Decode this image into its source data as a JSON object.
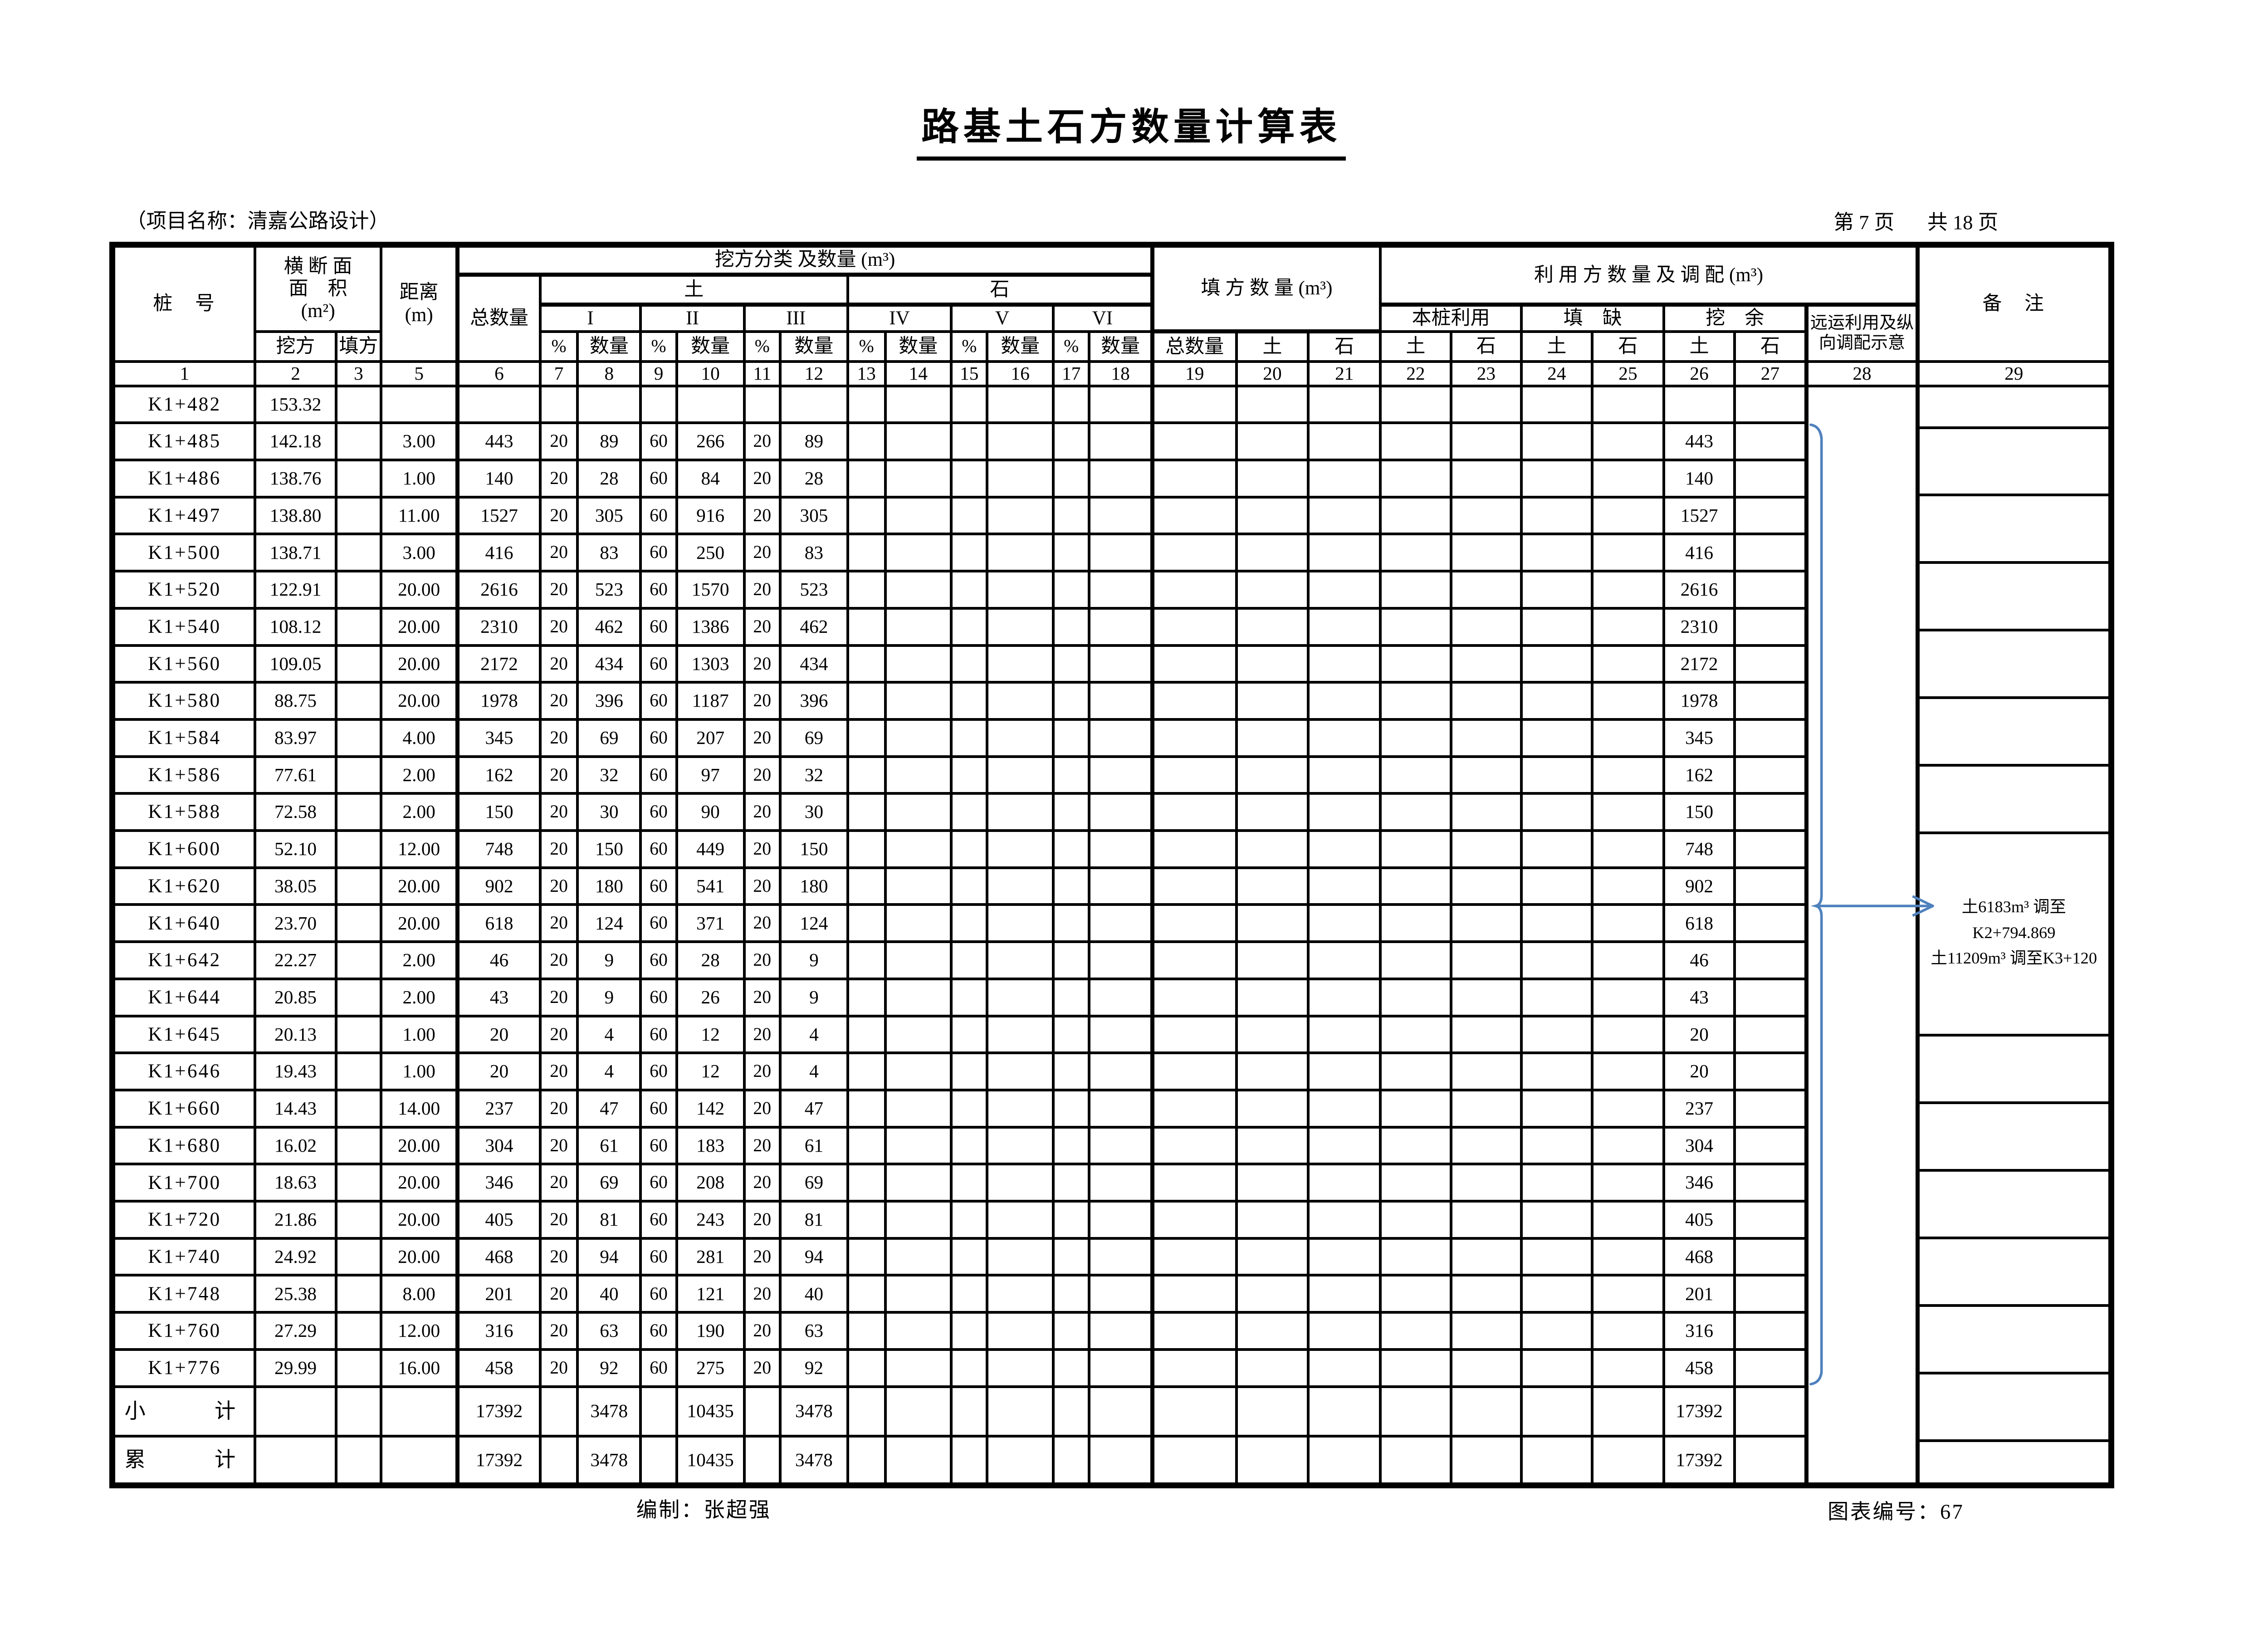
{
  "title": "路基土石方数量计算表",
  "project_label": "（项目名称：清嘉公路设计）",
  "page_info": {
    "page": "第 7 页",
    "pages": "共 18 页"
  },
  "footer": {
    "compiled_by": "编制：张超强",
    "chart_no": "图表编号：67"
  },
  "colors": {
    "line": "#000000",
    "bracket_blue": "#4f81bd"
  },
  "header": {
    "stake": "桩　号",
    "cross_section_l1": "横 断 面",
    "cross_section_l2": "面　积",
    "cross_section_l3": "(m²)",
    "cut": "挖方",
    "fill": "填方",
    "distance_l1": "距离",
    "distance_l2": "(m)",
    "excavation_group": "挖方分类 及数量 (m³)",
    "total_qty": "总数量",
    "soil": "土",
    "rock": "石",
    "categories": [
      "I",
      "II",
      "III",
      "IV",
      "V",
      "VI"
    ],
    "pct": "%",
    "qty": "数量",
    "fill_group": "填 方 数 量 (m³)",
    "use_group": "利 用 方 数 量 及 调 配 (m³)",
    "local_use": "本桩利用",
    "fill_lack": "填　缺",
    "dig_surplus": "挖　余",
    "remote_l1": "远运利用及纵",
    "remote_l2": "向调配示意",
    "remark": "备　注",
    "column_numbers": [
      "1",
      "2",
      "3",
      "5",
      "6",
      "7",
      "8",
      "9",
      "10",
      "11",
      "12",
      "13",
      "14",
      "15",
      "16",
      "17",
      "18",
      "19",
      "20",
      "21",
      "22",
      "23",
      "24",
      "25",
      "26",
      "27",
      "28",
      "29"
    ]
  },
  "rows": [
    {
      "stake": "K1+482",
      "cut": "153.32",
      "dist": "",
      "total": "",
      "p1": "",
      "q1": "",
      "p2": "",
      "q2": "",
      "p3": "",
      "q3": "",
      "dig": ""
    },
    {
      "stake": "K1+485",
      "cut": "142.18",
      "dist": "3.00",
      "total": "443",
      "p1": "20",
      "q1": "89",
      "p2": "60",
      "q2": "266",
      "p3": "20",
      "q3": "89",
      "dig": "443"
    },
    {
      "stake": "K1+486",
      "cut": "138.76",
      "dist": "1.00",
      "total": "140",
      "p1": "20",
      "q1": "28",
      "p2": "60",
      "q2": "84",
      "p3": "20",
      "q3": "28",
      "dig": "140"
    },
    {
      "stake": "K1+497",
      "cut": "138.80",
      "dist": "11.00",
      "total": "1527",
      "p1": "20",
      "q1": "305",
      "p2": "60",
      "q2": "916",
      "p3": "20",
      "q3": "305",
      "dig": "1527"
    },
    {
      "stake": "K1+500",
      "cut": "138.71",
      "dist": "3.00",
      "total": "416",
      "p1": "20",
      "q1": "83",
      "p2": "60",
      "q2": "250",
      "p3": "20",
      "q3": "83",
      "dig": "416"
    },
    {
      "stake": "K1+520",
      "cut": "122.91",
      "dist": "20.00",
      "total": "2616",
      "p1": "20",
      "q1": "523",
      "p2": "60",
      "q2": "1570",
      "p3": "20",
      "q3": "523",
      "dig": "2616"
    },
    {
      "stake": "K1+540",
      "cut": "108.12",
      "dist": "20.00",
      "total": "2310",
      "p1": "20",
      "q1": "462",
      "p2": "60",
      "q2": "1386",
      "p3": "20",
      "q3": "462",
      "dig": "2310"
    },
    {
      "stake": "K1+560",
      "cut": "109.05",
      "dist": "20.00",
      "total": "2172",
      "p1": "20",
      "q1": "434",
      "p2": "60",
      "q2": "1303",
      "p3": "20",
      "q3": "434",
      "dig": "2172"
    },
    {
      "stake": "K1+580",
      "cut": "88.75",
      "dist": "20.00",
      "total": "1978",
      "p1": "20",
      "q1": "396",
      "p2": "60",
      "q2": "1187",
      "p3": "20",
      "q3": "396",
      "dig": "1978"
    },
    {
      "stake": "K1+584",
      "cut": "83.97",
      "dist": "4.00",
      "total": "345",
      "p1": "20",
      "q1": "69",
      "p2": "60",
      "q2": "207",
      "p3": "20",
      "q3": "69",
      "dig": "345"
    },
    {
      "stake": "K1+586",
      "cut": "77.61",
      "dist": "2.00",
      "total": "162",
      "p1": "20",
      "q1": "32",
      "p2": "60",
      "q2": "97",
      "p3": "20",
      "q3": "32",
      "dig": "162"
    },
    {
      "stake": "K1+588",
      "cut": "72.58",
      "dist": "2.00",
      "total": "150",
      "p1": "20",
      "q1": "30",
      "p2": "60",
      "q2": "90",
      "p3": "20",
      "q3": "30",
      "dig": "150"
    },
    {
      "stake": "K1+600",
      "cut": "52.10",
      "dist": "12.00",
      "total": "748",
      "p1": "20",
      "q1": "150",
      "p2": "60",
      "q2": "449",
      "p3": "20",
      "q3": "150",
      "dig": "748"
    },
    {
      "stake": "K1+620",
      "cut": "38.05",
      "dist": "20.00",
      "total": "902",
      "p1": "20",
      "q1": "180",
      "p2": "60",
      "q2": "541",
      "p3": "20",
      "q3": "180",
      "dig": "902"
    },
    {
      "stake": "K1+640",
      "cut": "23.70",
      "dist": "20.00",
      "total": "618",
      "p1": "20",
      "q1": "124",
      "p2": "60",
      "q2": "371",
      "p3": "20",
      "q3": "124",
      "dig": "618"
    },
    {
      "stake": "K1+642",
      "cut": "22.27",
      "dist": "2.00",
      "total": "46",
      "p1": "20",
      "q1": "9",
      "p2": "60",
      "q2": "28",
      "p3": "20",
      "q3": "9",
      "dig": "46"
    },
    {
      "stake": "K1+644",
      "cut": "20.85",
      "dist": "2.00",
      "total": "43",
      "p1": "20",
      "q1": "9",
      "p2": "60",
      "q2": "26",
      "p3": "20",
      "q3": "9",
      "dig": "43"
    },
    {
      "stake": "K1+645",
      "cut": "20.13",
      "dist": "1.00",
      "total": "20",
      "p1": "20",
      "q1": "4",
      "p2": "60",
      "q2": "12",
      "p3": "20",
      "q3": "4",
      "dig": "20"
    },
    {
      "stake": "K1+646",
      "cut": "19.43",
      "dist": "1.00",
      "total": "20",
      "p1": "20",
      "q1": "4",
      "p2": "60",
      "q2": "12",
      "p3": "20",
      "q3": "4",
      "dig": "20"
    },
    {
      "stake": "K1+660",
      "cut": "14.43",
      "dist": "14.00",
      "total": "237",
      "p1": "20",
      "q1": "47",
      "p2": "60",
      "q2": "142",
      "p3": "20",
      "q3": "47",
      "dig": "237"
    },
    {
      "stake": "K1+680",
      "cut": "16.02",
      "dist": "20.00",
      "total": "304",
      "p1": "20",
      "q1": "61",
      "p2": "60",
      "q2": "183",
      "p3": "20",
      "q3": "61",
      "dig": "304"
    },
    {
      "stake": "K1+700",
      "cut": "18.63",
      "dist": "20.00",
      "total": "346",
      "p1": "20",
      "q1": "69",
      "p2": "60",
      "q2": "208",
      "p3": "20",
      "q3": "69",
      "dig": "346"
    },
    {
      "stake": "K1+720",
      "cut": "21.86",
      "dist": "20.00",
      "total": "405",
      "p1": "20",
      "q1": "81",
      "p2": "60",
      "q2": "243",
      "p3": "20",
      "q3": "81",
      "dig": "405"
    },
    {
      "stake": "K1+740",
      "cut": "24.92",
      "dist": "20.00",
      "total": "468",
      "p1": "20",
      "q1": "94",
      "p2": "60",
      "q2": "281",
      "p3": "20",
      "q3": "94",
      "dig": "468"
    },
    {
      "stake": "K1+748",
      "cut": "25.38",
      "dist": "8.00",
      "total": "201",
      "p1": "20",
      "q1": "40",
      "p2": "60",
      "q2": "121",
      "p3": "20",
      "q3": "40",
      "dig": "201"
    },
    {
      "stake": "K1+760",
      "cut": "27.29",
      "dist": "12.00",
      "total": "316",
      "p1": "20",
      "q1": "63",
      "p2": "60",
      "q2": "190",
      "p3": "20",
      "q3": "63",
      "dig": "316"
    },
    {
      "stake": "K1+776",
      "cut": "29.99",
      "dist": "16.00",
      "total": "458",
      "p1": "20",
      "q1": "92",
      "p2": "60",
      "q2": "275",
      "p3": "20",
      "q3": "92",
      "dig": "458"
    }
  ],
  "summary": [
    {
      "stake": "小　　计",
      "total": "17392",
      "q1": "3478",
      "q2": "10435",
      "q3": "3478",
      "dig": "17392"
    },
    {
      "stake": "累　　计",
      "total": "17392",
      "q1": "3478",
      "q2": "10435",
      "q3": "3478",
      "dig": "17392"
    }
  ],
  "annotation": {
    "lines": [
      "土6183m³ 调至",
      "K2+794.869",
      "土11209m³ 调至K3+120"
    ]
  }
}
